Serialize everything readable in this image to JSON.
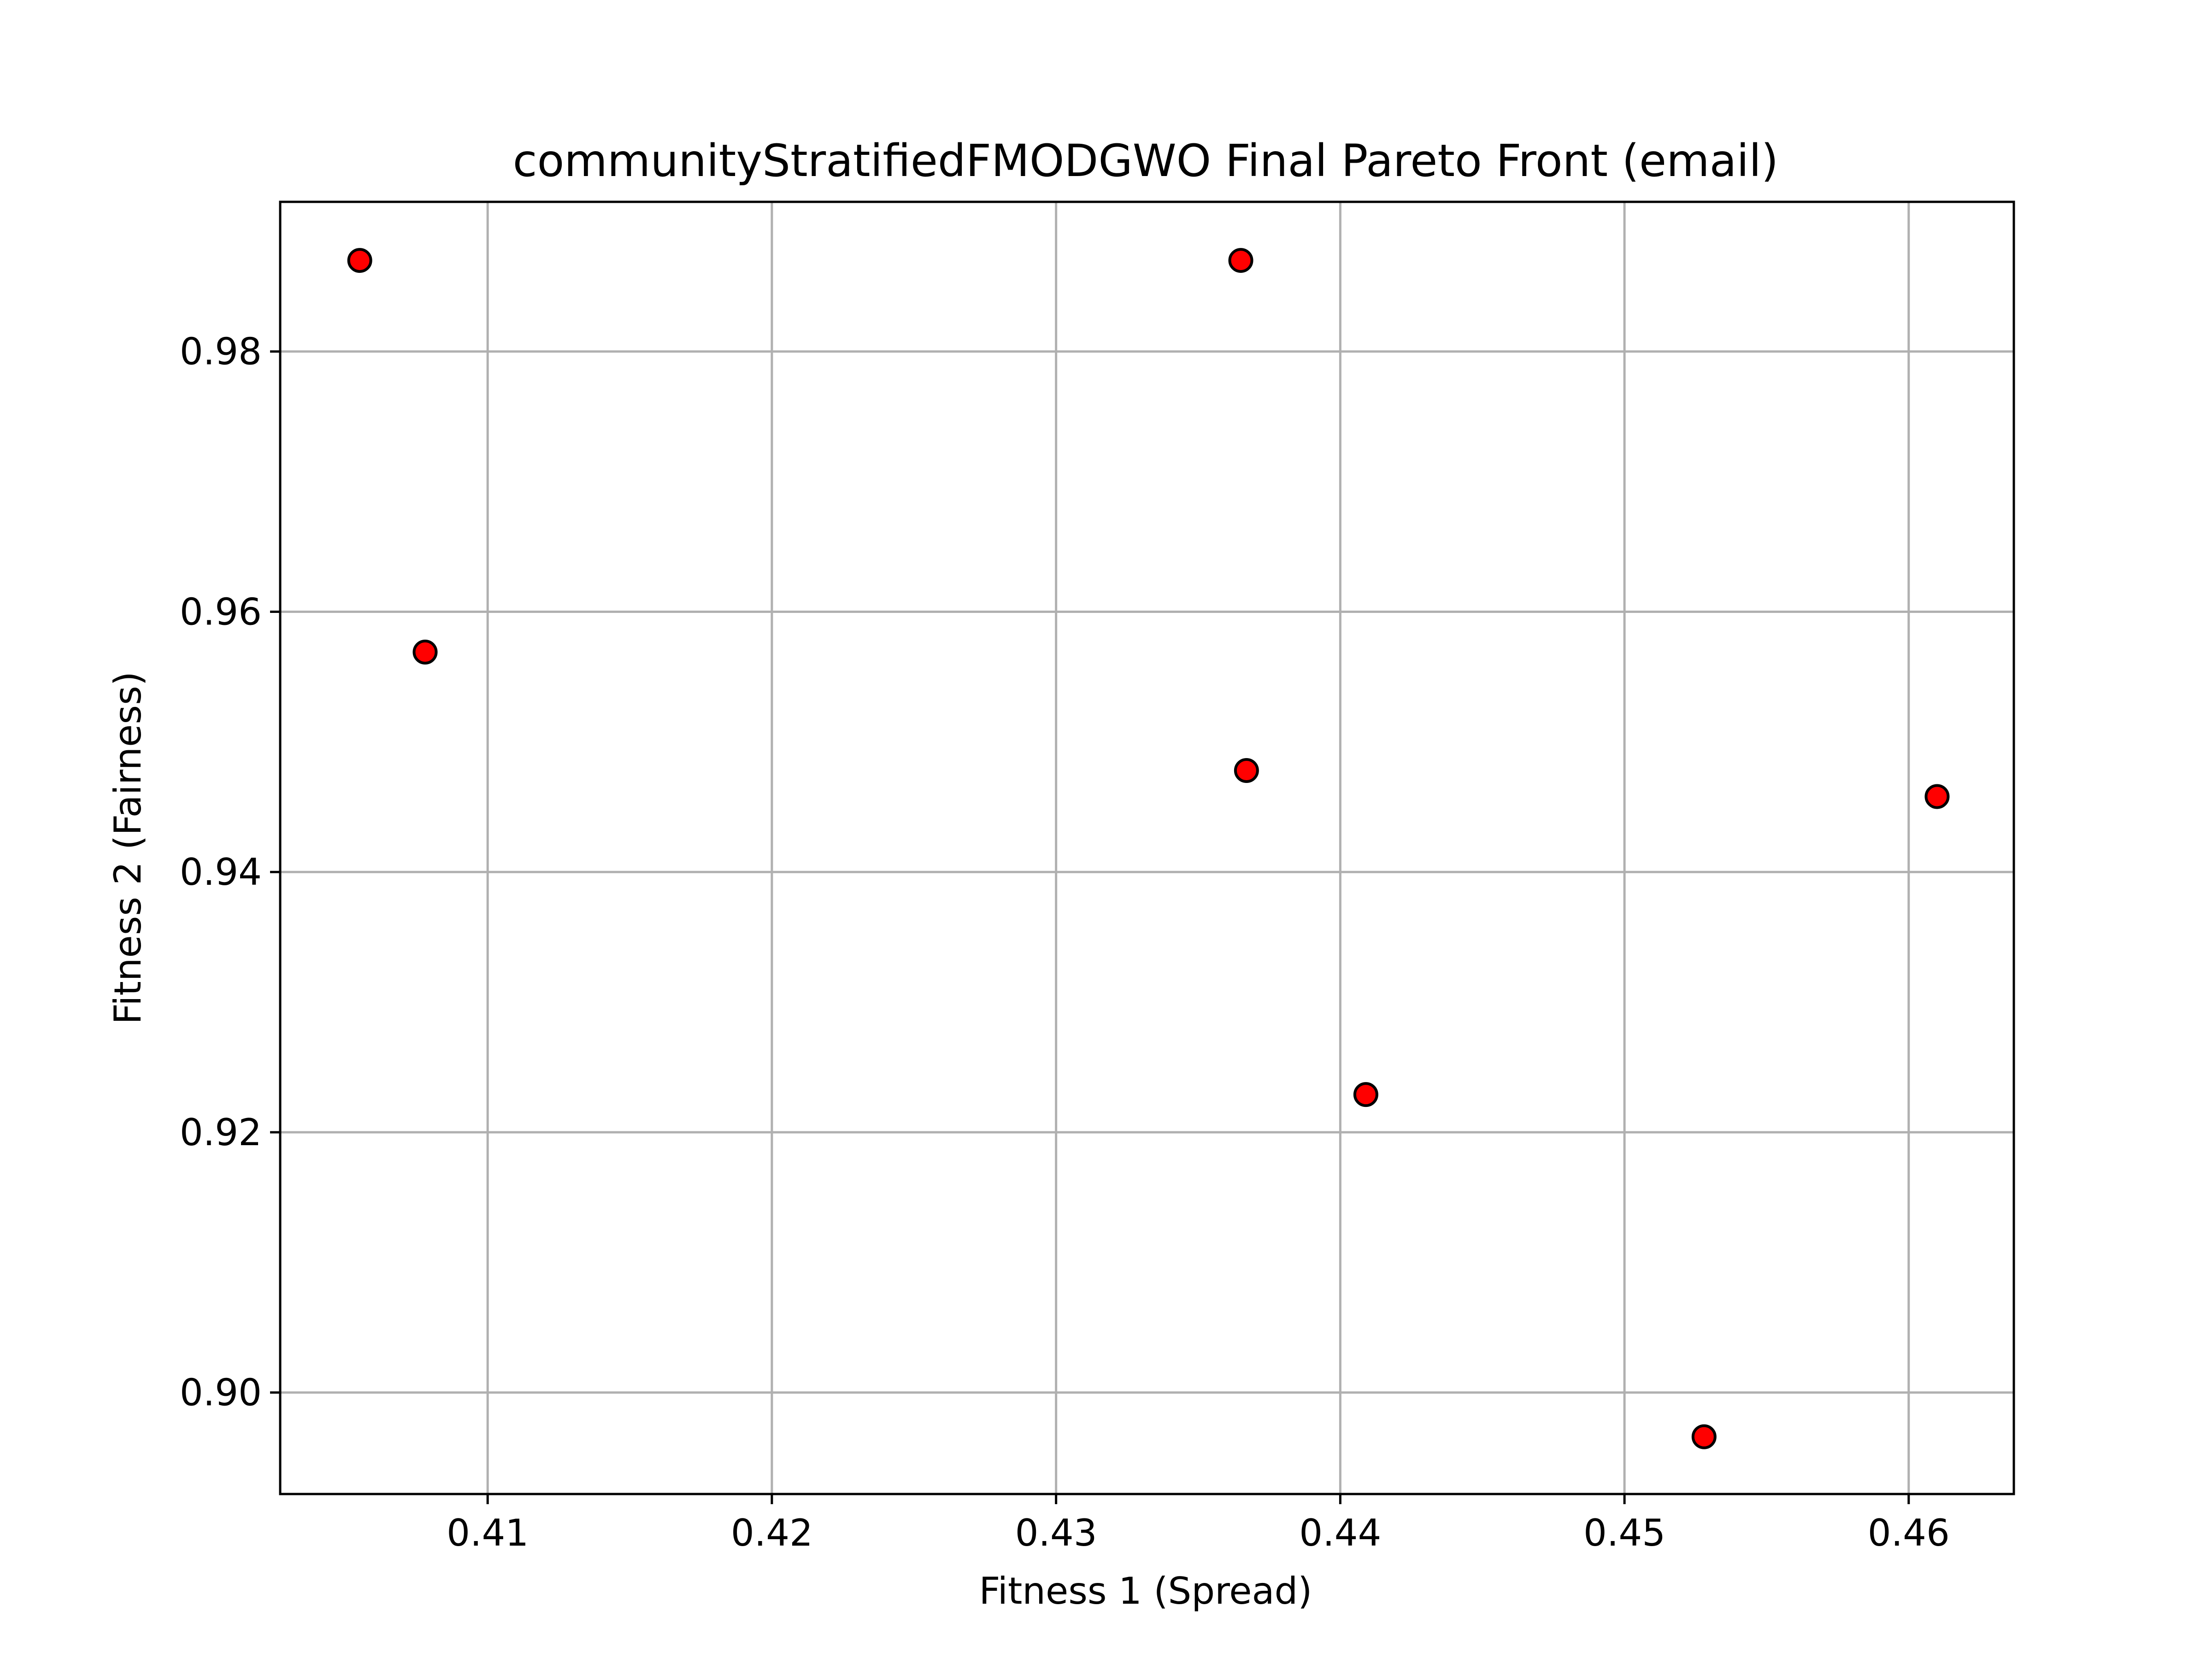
{
  "chart_data": {
    "type": "scatter",
    "title": "communityStratifiedFMODGWO Final Pareto Front (email)",
    "xlabel": "Fitness 1 (Spread)",
    "ylabel": "Fitness 2 (Fairness)",
    "xlim": [
      0.4027,
      0.4637
    ],
    "ylim": [
      0.8922,
      0.9915
    ],
    "xticks": [
      0.41,
      0.42,
      0.43,
      0.44,
      0.45,
      0.46
    ],
    "xtick_labels": [
      "0.41",
      "0.42",
      "0.43",
      "0.44",
      "0.45",
      "0.46"
    ],
    "yticks": [
      0.9,
      0.92,
      0.94,
      0.96,
      0.98
    ],
    "ytick_labels": [
      "0.90",
      "0.92",
      "0.94",
      "0.96",
      "0.98"
    ],
    "grid": true,
    "marker_color": "#ff0000",
    "marker_edge_color": "#000000",
    "points": [
      {
        "x": 0.4055,
        "y": 0.987
      },
      {
        "x": 0.4078,
        "y": 0.9569
      },
      {
        "x": 0.4365,
        "y": 0.987
      },
      {
        "x": 0.4367,
        "y": 0.9478
      },
      {
        "x": 0.4409,
        "y": 0.9229
      },
      {
        "x": 0.4528,
        "y": 0.8966
      },
      {
        "x": 0.461,
        "y": 0.9458
      }
    ]
  }
}
